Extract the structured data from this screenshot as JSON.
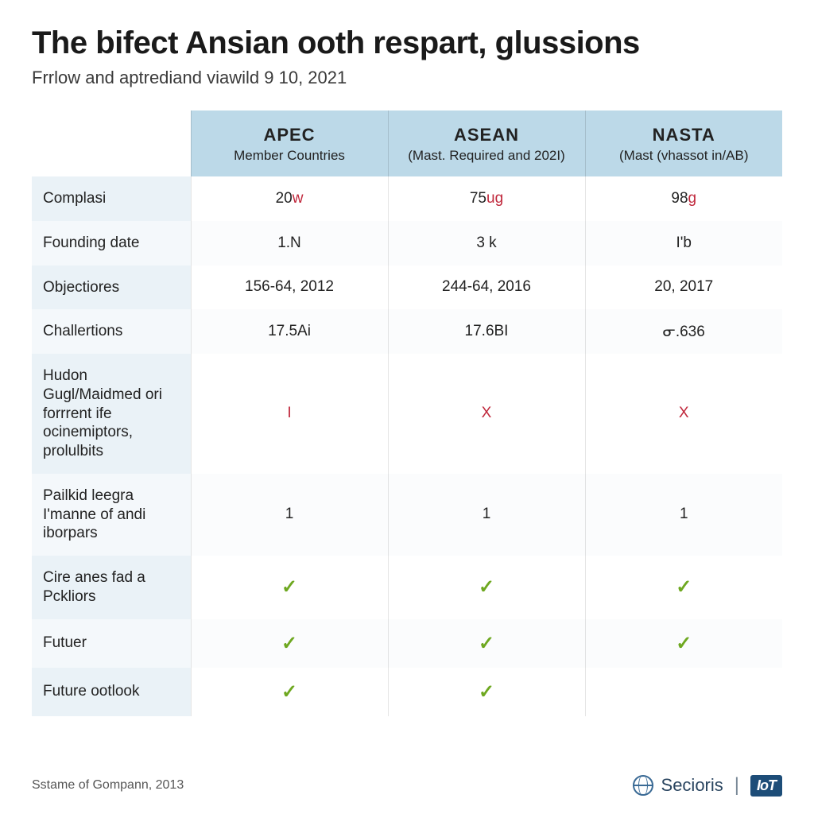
{
  "title": "The bifect Ansian ooth respart, glussions",
  "subtitle": "Frrlow and aptrediand viawild 9 10, 2021",
  "colors": {
    "header_bg": "#bcd9e8",
    "label_bg": "#eaf2f7",
    "label_bg_alt": "#f4f8fb",
    "accent_red": "#c0283c",
    "check_green": "#6ea820",
    "text": "#222222",
    "border": "rgba(0,0,0,0.10)"
  },
  "columns": [
    {
      "org": "APEC",
      "sub": "Member Countries"
    },
    {
      "org": "ASEAN",
      "sub": "(Mast. Required and 202I)"
    },
    {
      "org": "NASTA",
      "sub": "(Mast (vhassot in/AB)"
    }
  ],
  "rows": [
    {
      "label": "Complasi",
      "cells": [
        {
          "pre": "20",
          "unit": "w"
        },
        {
          "pre": "75",
          "unit": "ug"
        },
        {
          "pre": "98",
          "unit": "g"
        }
      ],
      "type": "split"
    },
    {
      "label": "Founding date",
      "cells": [
        "1.N",
        "3 k",
        "I'b"
      ],
      "type": "plain"
    },
    {
      "label": "Objectiores",
      "cells": [
        "156-64, 2012",
        "244-64, 2016",
        "20, 2017"
      ],
      "type": "plain"
    },
    {
      "label": "Challertions",
      "cells": [
        "17.5Ai",
        "17.6BI",
        "ᓂ.636"
      ],
      "type": "plain"
    },
    {
      "label": "Hudon Gugl/Maidmed ori forrrent ife ocinemiptors, prolulbits",
      "cells": [
        "I",
        "X",
        "X"
      ],
      "type": "red"
    },
    {
      "label": "Pailkid leegra I'manne of andi iborpars",
      "cells": [
        "1",
        "1",
        "1"
      ],
      "type": "plain"
    },
    {
      "label": "Cire anes fad a Pckliors",
      "cells": [
        "✓",
        "✓",
        "✓"
      ],
      "type": "check"
    },
    {
      "label": "Futuer",
      "cells": [
        "✓",
        "✓",
        "✓"
      ],
      "type": "check"
    },
    {
      "label": "Future ootlook",
      "cells": [
        "✓",
        "✓",
        ""
      ],
      "type": "check"
    }
  ],
  "footer": {
    "source": "Sstame of Gompann, 2013",
    "brand": "Secioris",
    "badge": "IoT"
  }
}
